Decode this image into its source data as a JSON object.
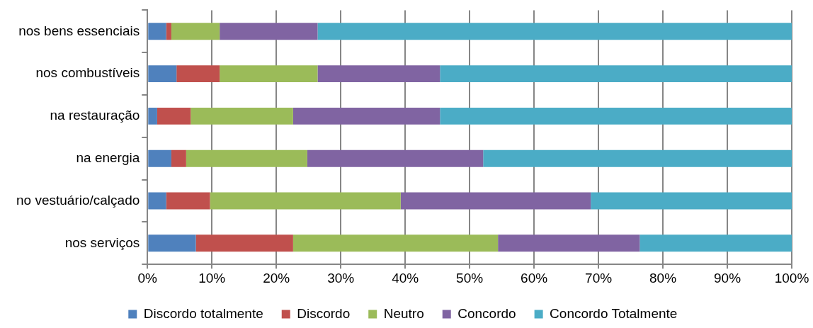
{
  "chart_data": {
    "type": "bar",
    "orientation": "horizontal",
    "stacked": true,
    "categories": [
      "nos bens essenciais",
      "nos combustíveis",
      "na restauração",
      "na energia",
      "no vestuário/calçado",
      "nos serviços"
    ],
    "series": [
      {
        "name": "Discordo totalmente",
        "color": "#4f81bd",
        "values": [
          2.9,
          4.5,
          1.5,
          3.7,
          2.9,
          7.5
        ]
      },
      {
        "name": "Discordo",
        "color": "#c0504d",
        "values": [
          0.8,
          6.7,
          5.2,
          2.3,
          6.8,
          15.1
        ]
      },
      {
        "name": "Neutro",
        "color": "#9bbb59",
        "values": [
          7.5,
          15.2,
          15.9,
          18.8,
          29.6,
          31.8
        ]
      },
      {
        "name": "Concordo",
        "color": "#8064a2",
        "values": [
          15.2,
          19.0,
          22.8,
          27.3,
          29.5,
          22.0
        ]
      },
      {
        "name": "Concordo Totalmente",
        "color": "#4bacc6",
        "values": [
          73.6,
          54.6,
          54.6,
          47.9,
          31.2,
          23.6
        ]
      }
    ],
    "xlim": [
      0,
      100
    ],
    "xticks": [
      {
        "value": 0,
        "label": "0%"
      },
      {
        "value": 10,
        "label": "10%"
      },
      {
        "value": 20,
        "label": "20%"
      },
      {
        "value": 30,
        "label": "30%"
      },
      {
        "value": 40,
        "label": "40%"
      },
      {
        "value": 50,
        "label": "50%"
      },
      {
        "value": 60,
        "label": "60%"
      },
      {
        "value": 70,
        "label": "70%"
      },
      {
        "value": 80,
        "label": "80%"
      },
      {
        "value": 90,
        "label": "90%"
      },
      {
        "value": 100,
        "label": "100%"
      }
    ],
    "grid": "x",
    "legend": "bottom"
  }
}
